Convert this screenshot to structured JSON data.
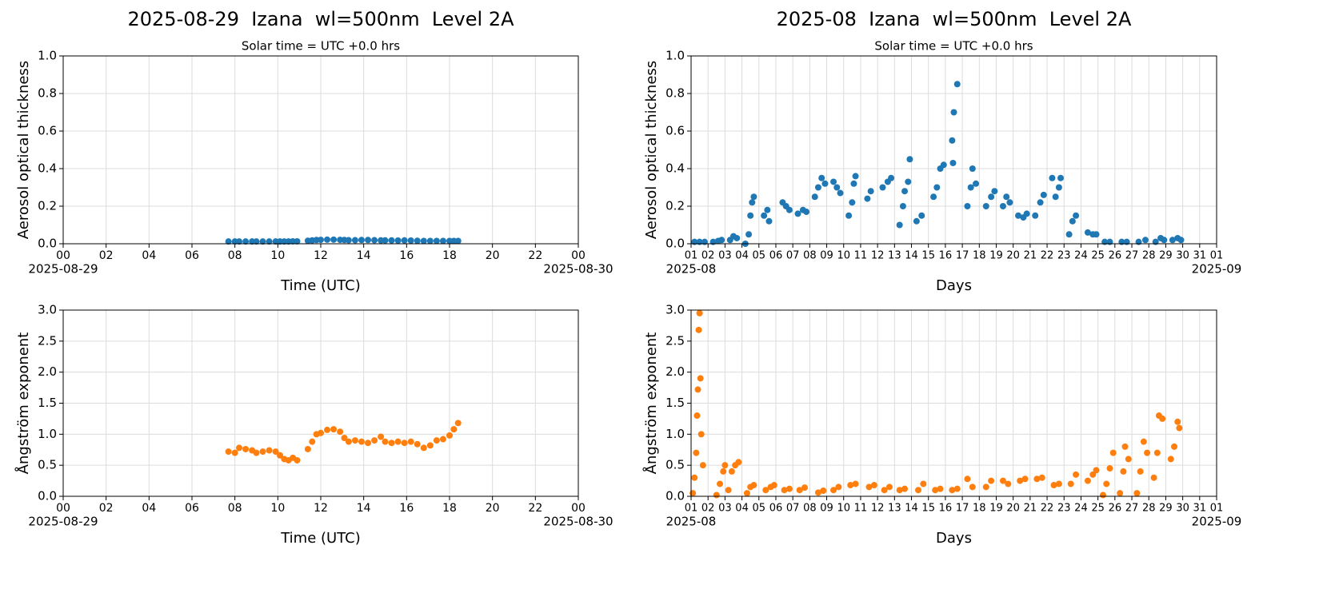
{
  "chart_data": [
    {
      "type": "scatter",
      "title": "2025-08-29  Izana  wl=500nm  Level 2A",
      "subtitle": "Solar time = UTC +0.0 hrs",
      "ylabel": "Aerosol optical thickness",
      "xlabel": "Time (UTC)",
      "color": "#1f77b4",
      "grid": true,
      "x": [
        7.7,
        8.0,
        8.2,
        8.5,
        8.8,
        9.0,
        9.3,
        9.6,
        9.9,
        10.1,
        10.3,
        10.5,
        10.7,
        10.9,
        11.4,
        11.6,
        11.8,
        12.0,
        12.3,
        12.6,
        12.9,
        13.1,
        13.3,
        13.6,
        13.9,
        14.2,
        14.5,
        14.8,
        15.0,
        15.3,
        15.6,
        15.9,
        16.2,
        16.5,
        16.8,
        17.1,
        17.4,
        17.7,
        18.0,
        18.2,
        18.4
      ],
      "values": [
        0.012,
        0.012,
        0.012,
        0.012,
        0.012,
        0.012,
        0.012,
        0.012,
        0.012,
        0.012,
        0.012,
        0.012,
        0.013,
        0.013,
        0.016,
        0.018,
        0.02,
        0.021,
        0.022,
        0.022,
        0.021,
        0.02,
        0.019,
        0.019,
        0.02,
        0.02,
        0.019,
        0.018,
        0.018,
        0.018,
        0.017,
        0.018,
        0.017,
        0.016,
        0.015,
        0.015,
        0.015,
        0.015,
        0.015,
        0.015,
        0.015
      ],
      "xlim": [
        0,
        24
      ],
      "ylim": [
        0,
        1
      ],
      "xticks": [
        {
          "value": 0,
          "label": "00"
        },
        {
          "value": 2,
          "label": "02"
        },
        {
          "value": 4,
          "label": "04"
        },
        {
          "value": 6,
          "label": "06"
        },
        {
          "value": 8,
          "label": "08"
        },
        10,
        12,
        14,
        16,
        18,
        20,
        22,
        {
          "value": 24,
          "label": "00"
        }
      ],
      "x_date_labels": [
        "2025-08-29",
        "2025-08-30"
      ],
      "yticks": [
        {
          "value": 0,
          "label": "0.0"
        },
        0.2,
        0.4,
        0.6,
        0.8,
        {
          "value": 1,
          "label": "1.0"
        }
      ]
    },
    {
      "type": "scatter",
      "title": "2025-08  Izana  wl=500nm  Level 2A",
      "subtitle": "Solar time = UTC +0.0 hrs",
      "ylabel": "Aerosol optical thickness",
      "xlabel": "Days",
      "color": "#1f77b4",
      "grid": true,
      "x": [
        1.2,
        1.5,
        1.8,
        2.3,
        2.6,
        2.8,
        3.3,
        3.5,
        3.7,
        4.2,
        4.4,
        4.5,
        4.6,
        4.7,
        5.3,
        5.5,
        5.6,
        6.4,
        6.6,
        6.8,
        7.3,
        7.6,
        7.8,
        8.3,
        8.5,
        8.7,
        8.9,
        9.4,
        9.6,
        9.8,
        10.3,
        10.5,
        10.6,
        10.7,
        11.4,
        11.6,
        12.3,
        12.6,
        12.8,
        13.3,
        13.5,
        13.6,
        13.8,
        13.9,
        14.3,
        14.6,
        15.3,
        15.5,
        15.7,
        15.9,
        16.4,
        16.45,
        16.5,
        16.7,
        17.3,
        17.5,
        17.6,
        17.8,
        18.4,
        18.7,
        18.9,
        19.4,
        19.6,
        19.8,
        20.3,
        20.6,
        20.8,
        21.3,
        21.6,
        21.8,
        22.3,
        22.5,
        22.7,
        22.8,
        23.3,
        23.5,
        23.7,
        24.4,
        24.7,
        24.9,
        25.4,
        25.7,
        26.4,
        26.7,
        27.4,
        27.8,
        28.4,
        28.7,
        28.9,
        29.4,
        29.7,
        29.9
      ],
      "values": [
        0.01,
        0.01,
        0.01,
        0.01,
        0.015,
        0.02,
        0.02,
        0.04,
        0.03,
        0.0,
        0.05,
        0.15,
        0.22,
        0.25,
        0.15,
        0.18,
        0.12,
        0.22,
        0.2,
        0.18,
        0.16,
        0.18,
        0.17,
        0.25,
        0.3,
        0.35,
        0.32,
        0.33,
        0.3,
        0.27,
        0.15,
        0.22,
        0.32,
        0.36,
        0.24,
        0.28,
        0.3,
        0.33,
        0.35,
        0.1,
        0.2,
        0.28,
        0.33,
        0.45,
        0.12,
        0.15,
        0.25,
        0.3,
        0.4,
        0.42,
        0.55,
        0.43,
        0.7,
        0.85,
        0.2,
        0.3,
        0.4,
        0.32,
        0.2,
        0.25,
        0.28,
        0.2,
        0.25,
        0.22,
        0.15,
        0.14,
        0.16,
        0.15,
        0.22,
        0.26,
        0.35,
        0.25,
        0.3,
        0.35,
        0.05,
        0.12,
        0.15,
        0.06,
        0.05,
        0.05,
        0.01,
        0.01,
        0.01,
        0.01,
        0.01,
        0.02,
        0.01,
        0.03,
        0.02,
        0.02,
        0.03,
        0.02
      ],
      "xlim": [
        1,
        32
      ],
      "ylim": [
        0,
        1
      ],
      "xticks": [
        {
          "value": 1,
          "label": "01"
        },
        {
          "value": 2,
          "label": "02"
        },
        {
          "value": 3,
          "label": "03"
        },
        {
          "value": 4,
          "label": "04"
        },
        {
          "value": 5,
          "label": "05"
        },
        {
          "value": 6,
          "label": "06"
        },
        {
          "value": 7,
          "label": "07"
        },
        {
          "value": 8,
          "label": "08"
        },
        {
          "value": 9,
          "label": "09"
        },
        10,
        11,
        12,
        13,
        14,
        15,
        16,
        17,
        18,
        19,
        20,
        21,
        22,
        23,
        24,
        25,
        26,
        27,
        28,
        29,
        30,
        31,
        {
          "value": 32,
          "label": "01"
        }
      ],
      "x_date_labels": [
        "2025-08",
        "2025-09"
      ],
      "yticks": [
        {
          "value": 0,
          "label": "0.0"
        },
        0.2,
        0.4,
        0.6,
        0.8,
        {
          "value": 1,
          "label": "1.0"
        }
      ]
    },
    {
      "type": "scatter",
      "ylabel": "Ångström exponent",
      "xlabel": "Time (UTC)",
      "color": "#ff7f0e",
      "grid": true,
      "x": [
        7.7,
        8.0,
        8.2,
        8.5,
        8.8,
        9.0,
        9.3,
        9.6,
        9.9,
        10.1,
        10.3,
        10.5,
        10.7,
        10.9,
        11.4,
        11.6,
        11.8,
        12.0,
        12.3,
        12.6,
        12.9,
        13.1,
        13.3,
        13.6,
        13.9,
        14.2,
        14.5,
        14.8,
        15.0,
        15.3,
        15.6,
        15.9,
        16.2,
        16.5,
        16.8,
        17.1,
        17.4,
        17.7,
        18.0,
        18.2,
        18.4
      ],
      "values": [
        0.72,
        0.7,
        0.78,
        0.76,
        0.74,
        0.7,
        0.72,
        0.74,
        0.72,
        0.66,
        0.6,
        0.58,
        0.62,
        0.58,
        0.76,
        0.88,
        1.0,
        1.02,
        1.07,
        1.08,
        1.04,
        0.94,
        0.88,
        0.9,
        0.88,
        0.86,
        0.9,
        0.96,
        0.88,
        0.86,
        0.88,
        0.86,
        0.88,
        0.84,
        0.78,
        0.82,
        0.9,
        0.92,
        0.98,
        1.08,
        1.18
      ],
      "xlim": [
        0,
        24
      ],
      "ylim": [
        0,
        3
      ],
      "xticks": [
        {
          "value": 0,
          "label": "00"
        },
        {
          "value": 2,
          "label": "02"
        },
        {
          "value": 4,
          "label": "04"
        },
        {
          "value": 6,
          "label": "06"
        },
        {
          "value": 8,
          "label": "08"
        },
        10,
        12,
        14,
        16,
        18,
        20,
        22,
        {
          "value": 24,
          "label": "00"
        }
      ],
      "x_date_labels": [
        "2025-08-29",
        "2025-08-30"
      ],
      "yticks": [
        {
          "value": 0,
          "label": "0.0"
        },
        0.5,
        {
          "value": 1,
          "label": "1.0"
        },
        1.5,
        {
          "value": 2,
          "label": "2.0"
        },
        2.5,
        {
          "value": 3,
          "label": "3.0"
        }
      ]
    },
    {
      "type": "scatter",
      "ylabel": "Ångström exponent",
      "xlabel": "Days",
      "color": "#ff7f0e",
      "grid": true,
      "x": [
        1.1,
        1.2,
        1.3,
        1.35,
        1.4,
        1.45,
        1.5,
        1.55,
        1.6,
        1.7,
        2.5,
        2.7,
        2.9,
        3.0,
        3.2,
        3.4,
        3.6,
        3.8,
        4.3,
        4.5,
        4.7,
        5.4,
        5.7,
        5.9,
        6.5,
        6.8,
        7.4,
        7.7,
        8.5,
        8.8,
        9.4,
        9.7,
        10.4,
        10.7,
        11.5,
        11.8,
        12.4,
        12.7,
        13.3,
        13.6,
        14.4,
        14.7,
        15.4,
        15.7,
        16.4,
        16.7,
        17.3,
        17.6,
        18.4,
        18.7,
        19.4,
        19.7,
        20.4,
        20.7,
        21.4,
        21.7,
        22.4,
        22.7,
        23.4,
        23.7,
        24.4,
        24.7,
        24.9,
        25.3,
        25.5,
        25.7,
        25.9,
        26.3,
        26.5,
        26.6,
        26.8,
        27.3,
        27.5,
        27.7,
        27.9,
        28.3,
        28.5,
        28.6,
        28.8,
        29.3,
        29.5,
        29.7,
        29.8
      ],
      "values": [
        0.05,
        0.3,
        0.7,
        1.3,
        1.72,
        2.68,
        2.95,
        1.9,
        1.0,
        0.5,
        0.02,
        0.2,
        0.4,
        0.5,
        0.1,
        0.4,
        0.5,
        0.55,
        0.05,
        0.15,
        0.18,
        0.1,
        0.15,
        0.18,
        0.1,
        0.12,
        0.1,
        0.14,
        0.06,
        0.09,
        0.1,
        0.15,
        0.18,
        0.2,
        0.15,
        0.18,
        0.1,
        0.15,
        0.1,
        0.12,
        0.1,
        0.2,
        0.1,
        0.12,
        0.1,
        0.12,
        0.28,
        0.15,
        0.15,
        0.25,
        0.25,
        0.2,
        0.25,
        0.28,
        0.28,
        0.3,
        0.18,
        0.2,
        0.2,
        0.35,
        0.25,
        0.35,
        0.42,
        0.02,
        0.2,
        0.45,
        0.7,
        0.05,
        0.4,
        0.8,
        0.6,
        0.05,
        0.4,
        0.88,
        0.7,
        0.3,
        0.7,
        1.3,
        1.25,
        0.6,
        0.8,
        1.2,
        1.1
      ],
      "xlim": [
        1,
        32
      ],
      "ylim": [
        0,
        3
      ],
      "xticks": [
        {
          "value": 1,
          "label": "01"
        },
        {
          "value": 2,
          "label": "02"
        },
        {
          "value": 3,
          "label": "03"
        },
        {
          "value": 4,
          "label": "04"
        },
        {
          "value": 5,
          "label": "05"
        },
        {
          "value": 6,
          "label": "06"
        },
        {
          "value": 7,
          "label": "07"
        },
        {
          "value": 8,
          "label": "08"
        },
        {
          "value": 9,
          "label": "09"
        },
        10,
        11,
        12,
        13,
        14,
        15,
        16,
        17,
        18,
        19,
        20,
        21,
        22,
        23,
        24,
        25,
        26,
        27,
        28,
        29,
        30,
        31,
        {
          "value": 32,
          "label": "01"
        }
      ],
      "x_date_labels": [
        "2025-08",
        "2025-09"
      ],
      "yticks": [
        {
          "value": 0,
          "label": "0.0"
        },
        0.5,
        {
          "value": 1,
          "label": "1.0"
        },
        1.5,
        {
          "value": 2,
          "label": "2.0"
        },
        2.5,
        {
          "value": 3,
          "label": "3.0"
        }
      ]
    }
  ]
}
